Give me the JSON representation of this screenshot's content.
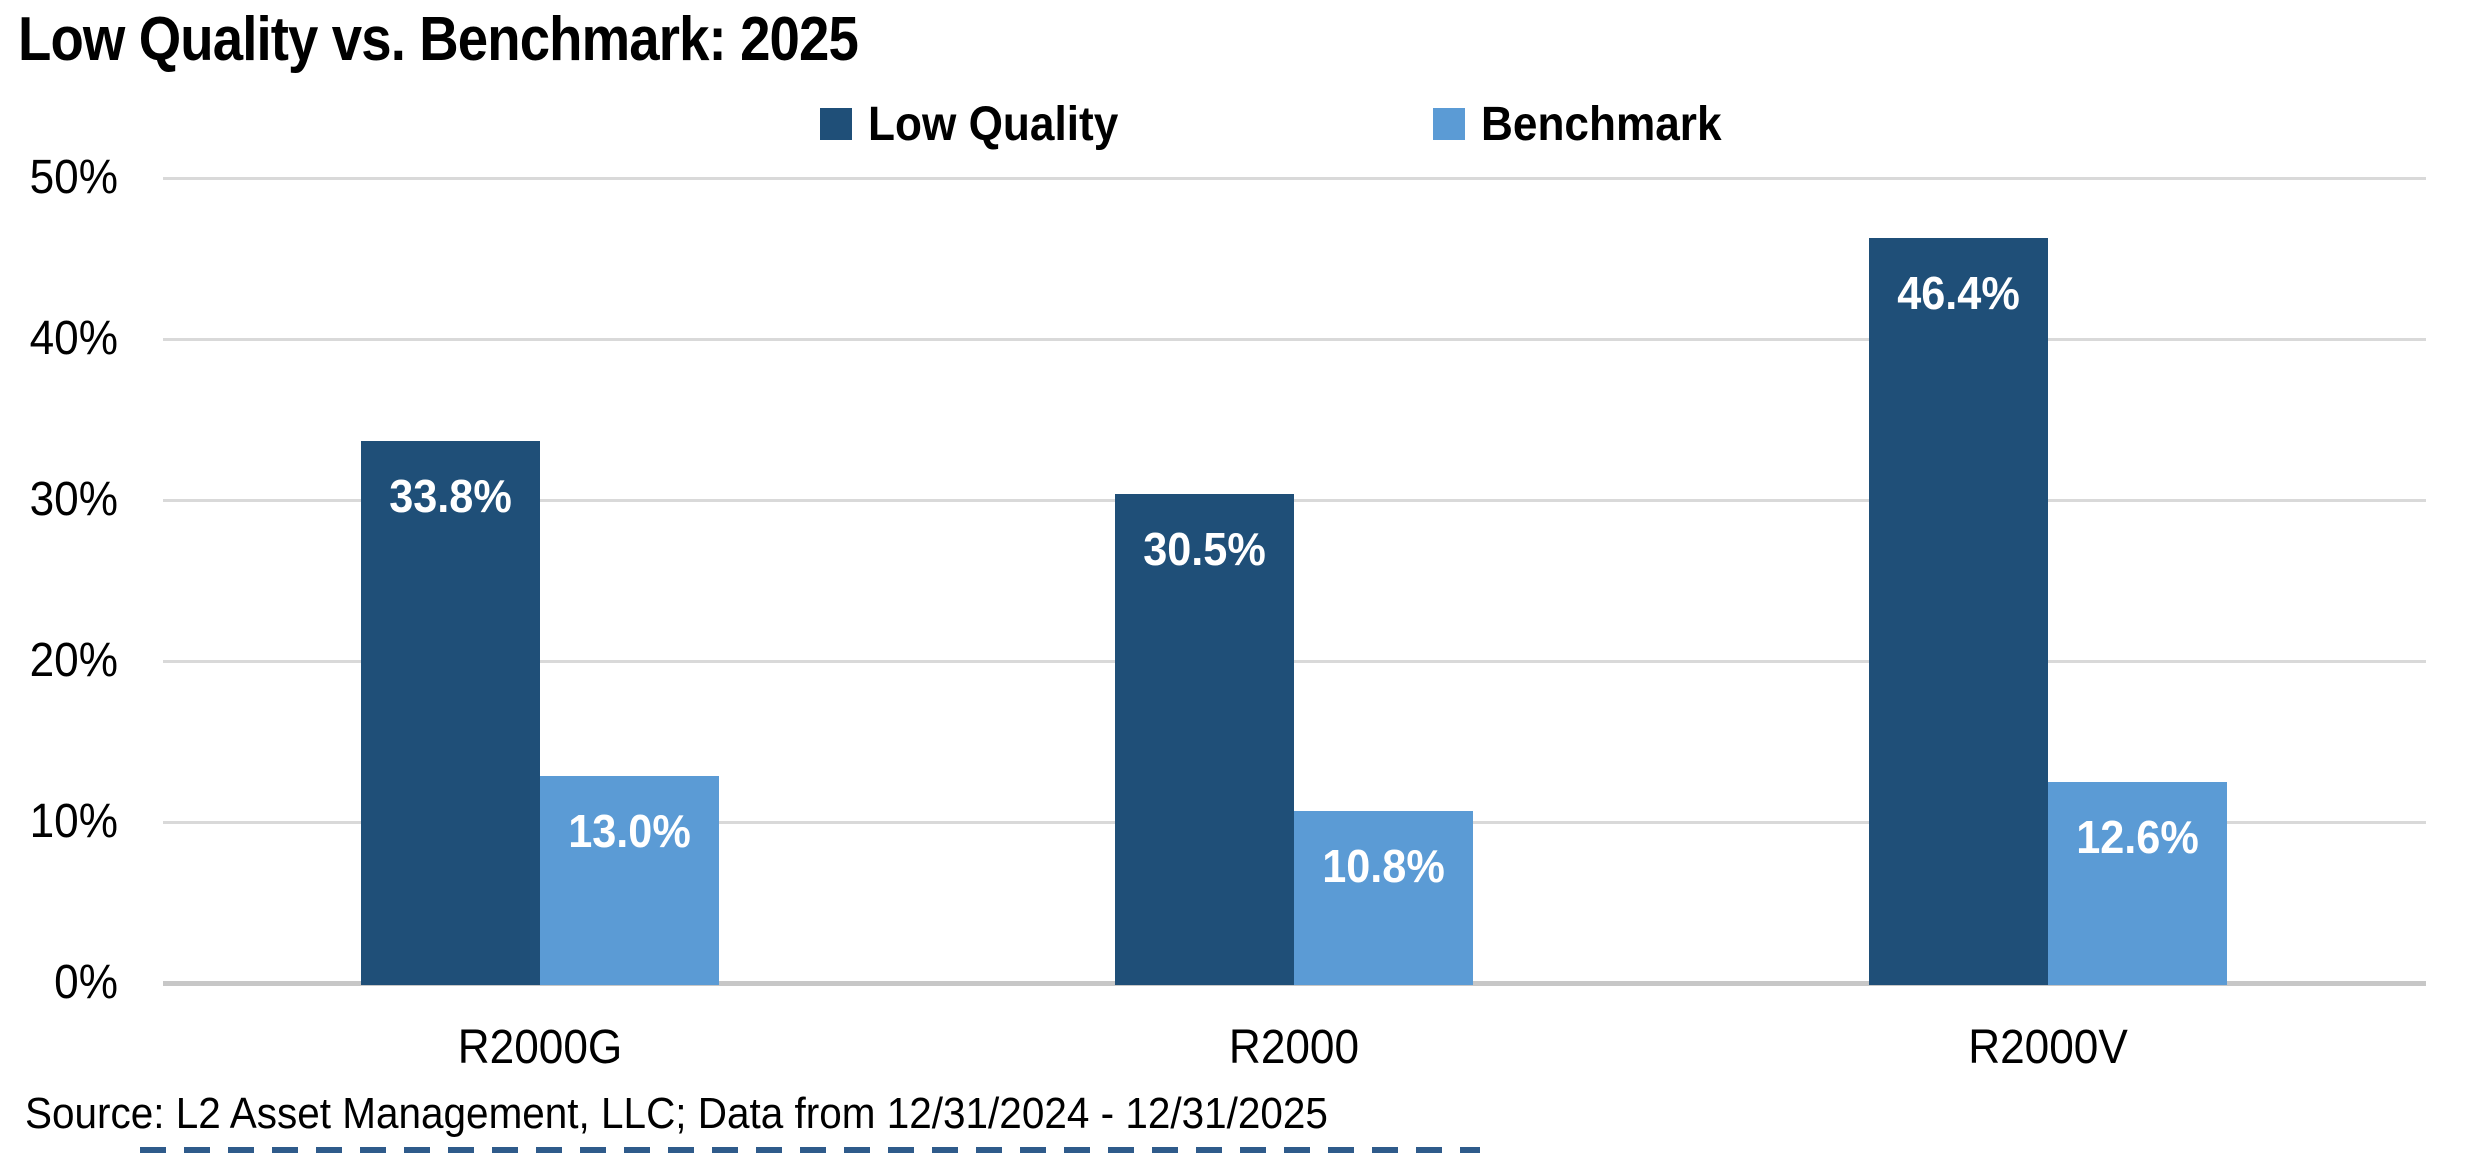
{
  "title": "Low Quality vs. Benchmark: 2025",
  "legend": {
    "items": [
      {
        "label": "Low Quality",
        "color": "#1F4F78"
      },
      {
        "label": "Benchmark",
        "color": "#5B9BD5"
      }
    ]
  },
  "y_axis": {
    "tick_labels": [
      "50%",
      "40%",
      "30%",
      "20%",
      "10%",
      "0%"
    ]
  },
  "x_axis": {
    "category_labels": [
      "R2000G",
      "R2000",
      "R2000V"
    ]
  },
  "source": "Source: L2 Asset Management, LLC; Data from 12/31/2024 - 12/31/2025",
  "chart_data": {
    "type": "bar",
    "title": "Low Quality vs. Benchmark: 2025",
    "categories": [
      "R2000G",
      "R2000",
      "R2000V"
    ],
    "series": [
      {
        "name": "Low Quality",
        "values": [
          33.8,
          30.5,
          46.4
        ],
        "color": "#1F4F78"
      },
      {
        "name": "Benchmark",
        "values": [
          13.0,
          10.8,
          12.6
        ],
        "color": "#5B9BD5"
      }
    ],
    "unit": "%",
    "ylim": [
      0,
      50
    ],
    "ytick_interval": 10,
    "grid": true,
    "legend_position": "top-center",
    "value_labels": "inside-top, white bold, one decimal + %"
  },
  "colors": {
    "grid": "#D9D9D9",
    "baseline": "#C7C7C7",
    "background": "#FFFFFF",
    "text": "#000000",
    "footer_strip": "#2F5B8B"
  }
}
